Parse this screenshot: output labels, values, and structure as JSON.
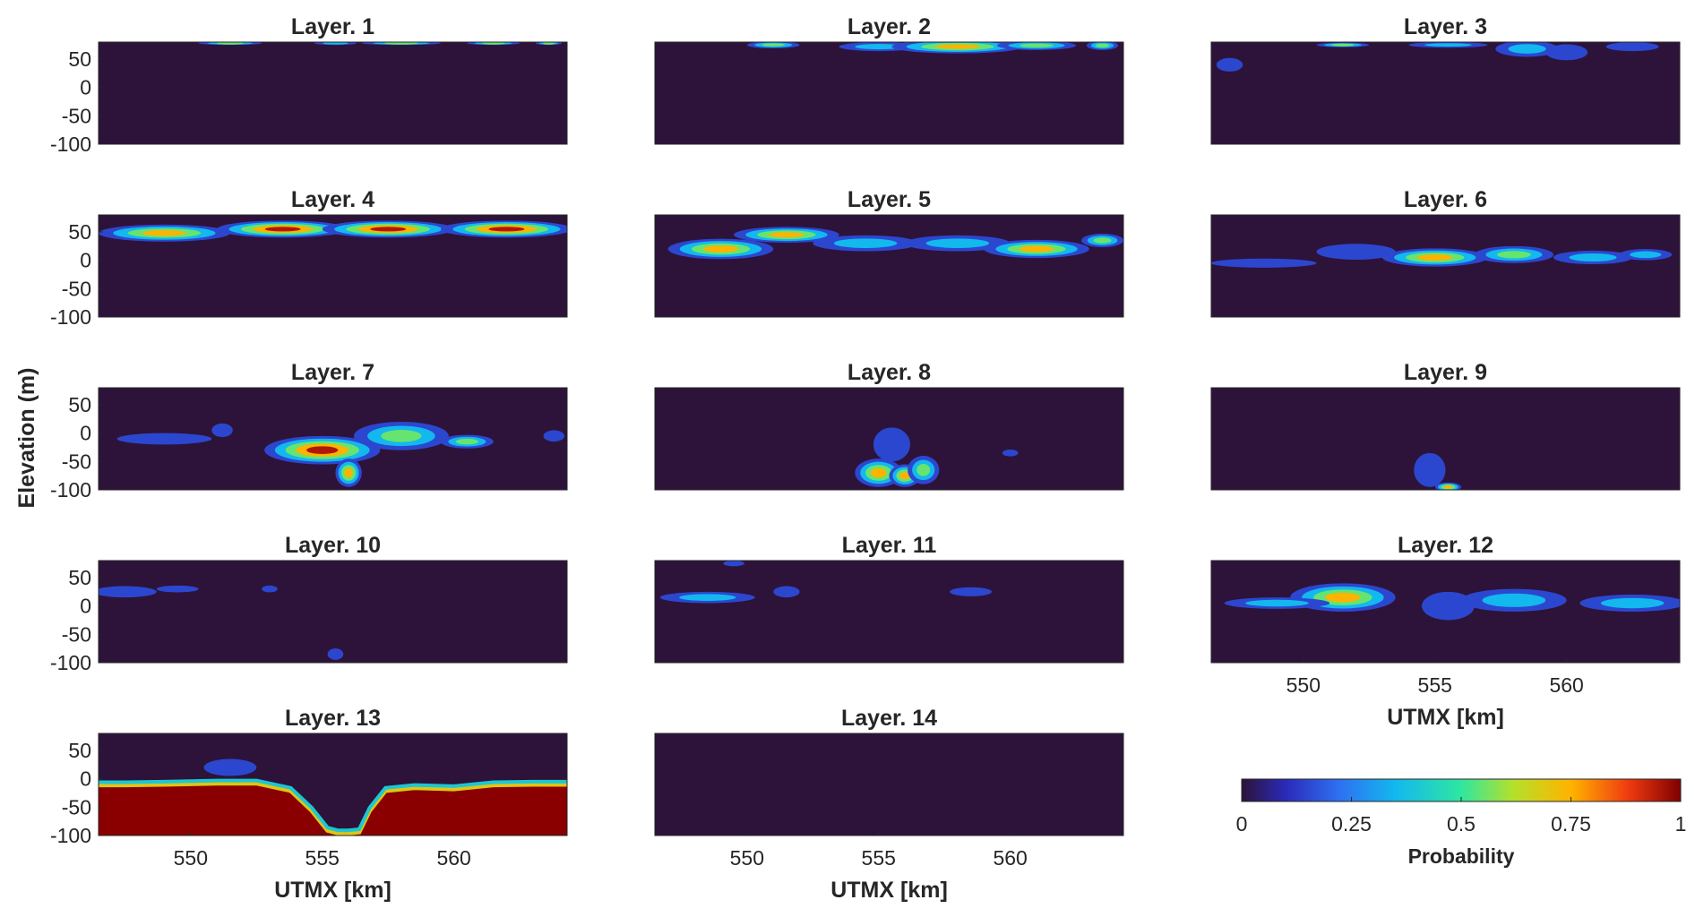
{
  "chart_data": {
    "type": "heatmap",
    "colormap": "jet",
    "colormap_dark_end": "#2d1339",
    "colormap_dark_red": "#7f0000",
    "panels": [
      {
        "title": "Layer. 1",
        "xticks": false,
        "xlabel": "",
        "blobs": [
          {
            "x": 551.5,
            "y": 78,
            "w": 1.2,
            "h": 3,
            "p": 0.6
          },
          {
            "x": 555.5,
            "y": 78,
            "w": 0.8,
            "h": 3,
            "p": 0.5
          },
          {
            "x": 558.0,
            "y": 78,
            "w": 1.5,
            "h": 3,
            "p": 0.7
          },
          {
            "x": 561.5,
            "y": 78,
            "w": 1.0,
            "h": 3,
            "p": 0.55
          },
          {
            "x": 563.6,
            "y": 78,
            "w": 0.5,
            "h": 3,
            "p": 0.6
          }
        ]
      },
      {
        "title": "Layer. 2",
        "xticks": false,
        "xlabel": "",
        "blobs": [
          {
            "x": 551.0,
            "y": 75,
            "w": 1.0,
            "h": 6,
            "p": 0.55
          },
          {
            "x": 555.0,
            "y": 72,
            "w": 1.5,
            "h": 8,
            "p": 0.35
          },
          {
            "x": 558.0,
            "y": 72,
            "w": 2.5,
            "h": 12,
            "p": 0.8
          },
          {
            "x": 561.0,
            "y": 74,
            "w": 1.5,
            "h": 8,
            "p": 0.65
          },
          {
            "x": 563.5,
            "y": 74,
            "w": 0.6,
            "h": 8,
            "p": 0.7
          }
        ]
      },
      {
        "title": "Layer. 3",
        "xticks": false,
        "xlabel": "",
        "blobs": [
          {
            "x": 547.2,
            "y": 40,
            "w": 0.5,
            "h": 12,
            "p": 0.2
          },
          {
            "x": 551.5,
            "y": 75,
            "w": 1.0,
            "h": 4,
            "p": 0.55
          },
          {
            "x": 555.5,
            "y": 75,
            "w": 1.5,
            "h": 5,
            "p": 0.35
          },
          {
            "x": 558.5,
            "y": 68,
            "w": 1.2,
            "h": 14,
            "p": 0.45
          },
          {
            "x": 560.0,
            "y": 62,
            "w": 0.8,
            "h": 14,
            "p": 0.2
          },
          {
            "x": 562.5,
            "y": 72,
            "w": 1.0,
            "h": 8,
            "p": 0.2
          }
        ]
      },
      {
        "title": "Layer. 4",
        "xticks": false,
        "xlabel": "",
        "blobs": [
          {
            "x": 549.0,
            "y": 48,
            "w": 2.5,
            "h": 15,
            "p": 0.85
          },
          {
            "x": 553.5,
            "y": 55,
            "w": 2.5,
            "h": 15,
            "p": 0.95
          },
          {
            "x": 557.5,
            "y": 55,
            "w": 2.5,
            "h": 15,
            "p": 0.95
          },
          {
            "x": 562.0,
            "y": 55,
            "w": 2.5,
            "h": 15,
            "p": 0.95
          }
        ]
      },
      {
        "title": "Layer. 5",
        "xticks": false,
        "xlabel": "",
        "blobs": [
          {
            "x": 549.0,
            "y": 20,
            "w": 2.0,
            "h": 18,
            "p": 0.9
          },
          {
            "x": 551.5,
            "y": 45,
            "w": 2.0,
            "h": 14,
            "p": 0.85
          },
          {
            "x": 554.5,
            "y": 30,
            "w": 2.0,
            "h": 14,
            "p": 0.4
          },
          {
            "x": 558.0,
            "y": 30,
            "w": 2.0,
            "h": 14,
            "p": 0.35
          },
          {
            "x": 561.0,
            "y": 20,
            "w": 2.0,
            "h": 16,
            "p": 0.9
          },
          {
            "x": 563.5,
            "y": 35,
            "w": 0.8,
            "h": 12,
            "p": 0.6
          }
        ]
      },
      {
        "title": "Layer. 6",
        "xticks": false,
        "xlabel": "",
        "blobs": [
          {
            "x": 548.5,
            "y": -5,
            "w": 2.0,
            "h": 8,
            "p": 0.3
          },
          {
            "x": 552.0,
            "y": 15,
            "w": 1.5,
            "h": 14,
            "p": 0.25
          },
          {
            "x": 555.0,
            "y": 5,
            "w": 2.0,
            "h": 16,
            "p": 0.9
          },
          {
            "x": 558.0,
            "y": 10,
            "w": 1.5,
            "h": 15,
            "p": 0.6
          },
          {
            "x": 561.0,
            "y": 5,
            "w": 1.5,
            "h": 12,
            "p": 0.35
          },
          {
            "x": 563.0,
            "y": 10,
            "w": 1.0,
            "h": 10,
            "p": 0.4
          }
        ]
      },
      {
        "title": "Layer. 7",
        "xticks": false,
        "xlabel": "",
        "blobs": [
          {
            "x": 549.0,
            "y": -10,
            "w": 1.8,
            "h": 10,
            "p": 0.25
          },
          {
            "x": 551.2,
            "y": 5,
            "w": 0.4,
            "h": 12,
            "p": 0.2
          },
          {
            "x": 555.0,
            "y": -30,
            "w": 2.2,
            "h": 25,
            "p": 0.95
          },
          {
            "x": 556.0,
            "y": -70,
            "w": 0.5,
            "h": 25,
            "p": 0.9
          },
          {
            "x": 558.0,
            "y": -5,
            "w": 1.8,
            "h": 25,
            "p": 0.6
          },
          {
            "x": 560.5,
            "y": -15,
            "w": 1.0,
            "h": 12,
            "p": 0.55
          },
          {
            "x": 563.8,
            "y": -5,
            "w": 0.4,
            "h": 10,
            "p": 0.2
          }
        ]
      },
      {
        "title": "Layer. 8",
        "xticks": false,
        "xlabel": "",
        "blobs": [
          {
            "x": 555.0,
            "y": -70,
            "w": 0.9,
            "h": 25,
            "p": 0.9
          },
          {
            "x": 556.0,
            "y": -75,
            "w": 0.6,
            "h": 20,
            "p": 0.85
          },
          {
            "x": 555.5,
            "y": -20,
            "w": 0.7,
            "h": 30,
            "p": 0.3
          },
          {
            "x": 556.7,
            "y": -65,
            "w": 0.6,
            "h": 25,
            "p": 0.7
          },
          {
            "x": 560.0,
            "y": -35,
            "w": 0.3,
            "h": 6,
            "p": 0.2
          }
        ]
      },
      {
        "title": "Layer. 9",
        "xticks": false,
        "xlabel": "",
        "blobs": [
          {
            "x": 554.8,
            "y": -65,
            "w": 0.6,
            "h": 30,
            "p": 0.25
          },
          {
            "x": 555.5,
            "y": -95,
            "w": 0.5,
            "h": 8,
            "p": 0.8
          }
        ]
      },
      {
        "title": "Layer. 10",
        "xticks": false,
        "xlabel": "",
        "blobs": [
          {
            "x": 547.5,
            "y": 25,
            "w": 1.2,
            "h": 10,
            "p": 0.28
          },
          {
            "x": 549.5,
            "y": 30,
            "w": 0.8,
            "h": 6,
            "p": 0.3
          },
          {
            "x": 553.0,
            "y": 30,
            "w": 0.3,
            "h": 6,
            "p": 0.2
          },
          {
            "x": 555.5,
            "y": -85,
            "w": 0.3,
            "h": 10,
            "p": 0.2
          }
        ]
      },
      {
        "title": "Layer. 11",
        "xticks": false,
        "xlabel": "",
        "blobs": [
          {
            "x": 548.5,
            "y": 15,
            "w": 1.8,
            "h": 10,
            "p": 0.35
          },
          {
            "x": 551.5,
            "y": 25,
            "w": 0.5,
            "h": 10,
            "p": 0.2
          },
          {
            "x": 558.5,
            "y": 25,
            "w": 0.8,
            "h": 8,
            "p": 0.2
          },
          {
            "x": 549.5,
            "y": 75,
            "w": 0.4,
            "h": 5,
            "p": 0.2
          }
        ]
      },
      {
        "title": "Layer. 12",
        "xticks": true,
        "xlabel": "UTMX [km]",
        "blobs": [
          {
            "x": 551.5,
            "y": 15,
            "w": 2.0,
            "h": 25,
            "p": 0.9
          },
          {
            "x": 549.0,
            "y": 5,
            "w": 2.0,
            "h": 10,
            "p": 0.35
          },
          {
            "x": 555.5,
            "y": 0,
            "w": 1.0,
            "h": 25,
            "p": 0.25
          },
          {
            "x": 558.0,
            "y": 10,
            "w": 2.0,
            "h": 20,
            "p": 0.45
          },
          {
            "x": 562.5,
            "y": 5,
            "w": 2.0,
            "h": 15,
            "p": 0.5
          }
        ]
      },
      {
        "title": "Layer. 13",
        "xticks": true,
        "xlabel": "UTMX [km]",
        "blobs": [
          {
            "x": 551.5,
            "y": 20,
            "w": 1.0,
            "h": 15,
            "p": 0.25
          }
        ],
        "surface": true
      },
      {
        "title": "Layer. 14",
        "xticks": true,
        "xlabel": "UTMX [km]",
        "blobs": []
      }
    ],
    "xlim": [
      546.5,
      564.3
    ],
    "ylim": [
      -100,
      80
    ],
    "xticks": [
      550,
      555,
      560
    ],
    "yticks": [
      50,
      0,
      -50,
      -100
    ],
    "ylabel": "Elevation (m)",
    "colorbar": {
      "label": "Probability",
      "ticks": [
        "0",
        "0.25",
        "0.5",
        "0.75",
        "1"
      ],
      "range": [
        0,
        1
      ]
    }
  }
}
